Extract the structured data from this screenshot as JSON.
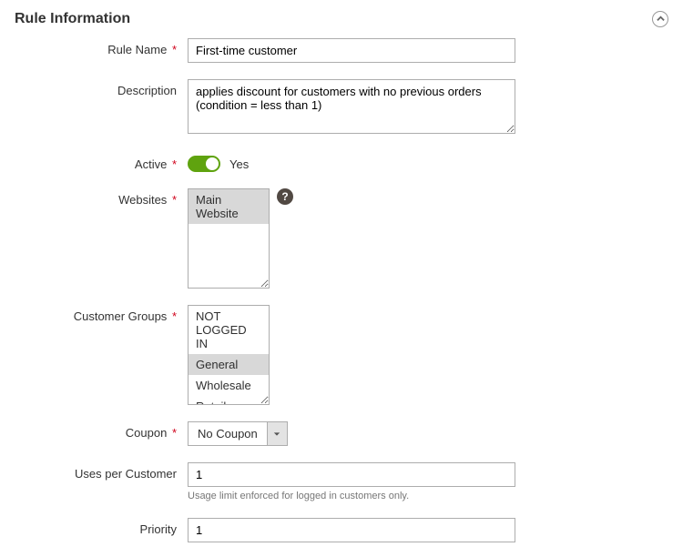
{
  "section": {
    "title": "Rule Information"
  },
  "labels": {
    "rule_name": "Rule Name",
    "description": "Description",
    "active": "Active",
    "websites": "Websites",
    "customer_groups": "Customer Groups",
    "coupon": "Coupon",
    "uses_per_customer": "Uses per Customer",
    "priority": "Priority"
  },
  "values": {
    "rule_name": "First-time customer",
    "description": "applies discount for customers with no previous orders (condition = less than 1)",
    "active_state": "Yes",
    "coupon": "No Coupon",
    "uses_per_customer": "1",
    "priority": "1"
  },
  "websites": {
    "options": [
      "Main Website"
    ],
    "selected": [
      "Main Website"
    ]
  },
  "customer_groups": {
    "options": [
      "NOT LOGGED IN",
      "General",
      "Wholesale",
      "Retailer"
    ],
    "selected": [
      "General"
    ]
  },
  "hints": {
    "uses_per_customer": "Usage limit enforced for logged in customers only."
  },
  "glyphs": {
    "required": "*",
    "help": "?"
  }
}
